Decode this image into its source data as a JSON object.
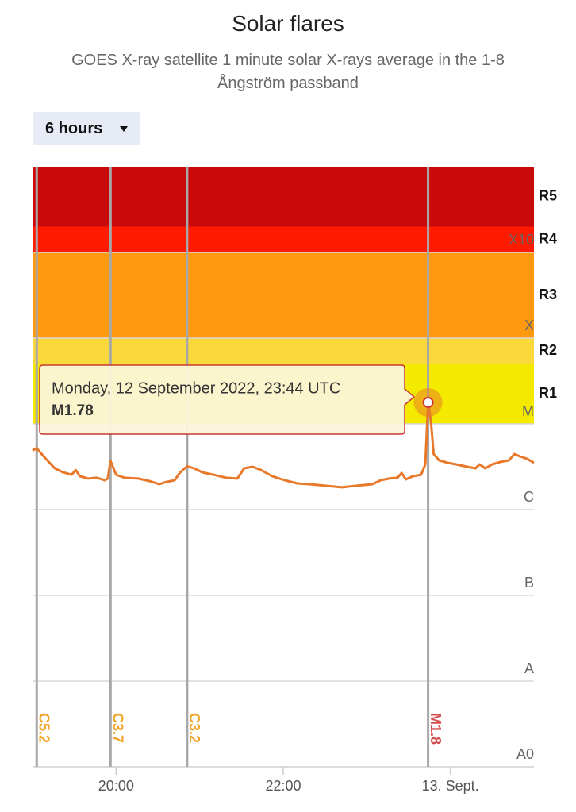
{
  "chart_data": {
    "type": "line",
    "title": "Solar flares",
    "subtitle": "GOES X-ray satellite 1 minute solar X-rays average in the 1-8 Ångström passband",
    "range_selector": "6 hours",
    "log_scale": true,
    "grid": true,
    "color": "#e8782a",
    "ylim": [
      1e-09,
      0.01
    ],
    "yticks": [
      {
        "value": 1e-09,
        "label": "A0"
      },
      {
        "value": 1e-08,
        "label": "A"
      },
      {
        "value": 1e-07,
        "label": "B"
      },
      {
        "value": 1e-06,
        "label": "C"
      },
      {
        "value": 1e-05,
        "label": "M"
      },
      {
        "value": 0.0001,
        "label": "X"
      },
      {
        "value": 0.001,
        "label": "X10"
      }
    ],
    "xlim": [
      "2022-09-12T19:00Z",
      "2022-09-13T01:00Z"
    ],
    "xticks": [
      {
        "value": "2022-09-12T20:00Z",
        "label": "20:00"
      },
      {
        "value": "2022-09-12T22:00Z",
        "label": "22:00"
      },
      {
        "value": "2022-09-13T00:00Z",
        "label": "13. Sept."
      }
    ],
    "bands": [
      {
        "label": "R1",
        "from": 1e-05,
        "to": 5e-05,
        "color": "#f4ea00"
      },
      {
        "label": "R2",
        "from": 5e-05,
        "to": 0.0001,
        "color": "#fcd93a"
      },
      {
        "label": "R3",
        "from": 0.0001,
        "to": 0.001,
        "color": "#ff9a10"
      },
      {
        "label": "R4",
        "from": 0.001,
        "to": 0.002,
        "color": "#ff1a00"
      },
      {
        "label": "R5",
        "from": 0.002,
        "to": 0.01,
        "color": "#c80a0a"
      }
    ],
    "flares": [
      {
        "x": "2022-09-12T19:03Z",
        "label": "C5.2",
        "color": "#f0a428"
      },
      {
        "x": "2022-09-12T19:56Z",
        "label": "C3.7",
        "color": "#f0a428"
      },
      {
        "x": "2022-09-12T20:51Z",
        "label": "C3.2",
        "color": "#f0a428"
      },
      {
        "x": "2022-09-12T23:44Z",
        "label": "M1.8",
        "color": "#d45050"
      }
    ],
    "tooltip": {
      "text": "Monday, 12 September 2022, 23:44 UTC",
      "label": "M1.78",
      "x": "2022-09-12T23:44Z",
      "value": 1.78e-05
    },
    "x": [
      "2022-09-12T19:00Z",
      "2022-09-12T19:03Z",
      "2022-09-12T19:08Z",
      "2022-09-12T19:16Z",
      "2022-09-12T19:22Z",
      "2022-09-12T19:28Z",
      "2022-09-12T19:31Z",
      "2022-09-12T19:34Z",
      "2022-09-12T19:40Z",
      "2022-09-12T19:46Z",
      "2022-09-12T19:52Z",
      "2022-09-12T19:54Z",
      "2022-09-12T19:56Z",
      "2022-09-12T20:00Z",
      "2022-09-12T20:06Z",
      "2022-09-12T20:16Z",
      "2022-09-12T20:24Z",
      "2022-09-12T20:31Z",
      "2022-09-12T20:36Z",
      "2022-09-12T20:42Z",
      "2022-09-12T20:46Z",
      "2022-09-12T20:51Z",
      "2022-09-12T20:56Z",
      "2022-09-12T21:02Z",
      "2022-09-12T21:10Z",
      "2022-09-12T21:19Z",
      "2022-09-12T21:27Z",
      "2022-09-12T21:32Z",
      "2022-09-12T21:38Z",
      "2022-09-12T21:44Z",
      "2022-09-12T21:52Z",
      "2022-09-12T22:01Z",
      "2022-09-12T22:10Z",
      "2022-09-12T22:19Z",
      "2022-09-12T22:30Z",
      "2022-09-12T22:42Z",
      "2022-09-12T22:53Z",
      "2022-09-12T23:04Z",
      "2022-09-12T23:10Z",
      "2022-09-12T23:16Z",
      "2022-09-12T23:22Z",
      "2022-09-12T23:25Z",
      "2022-09-12T23:28Z",
      "2022-09-12T23:33Z",
      "2022-09-12T23:39Z",
      "2022-09-12T23:42Z",
      "2022-09-12T23:44Z",
      "2022-09-12T23:46Z",
      "2022-09-12T23:48Z",
      "2022-09-12T23:52Z",
      "2022-09-12T23:58Z",
      "2022-09-13T00:04Z",
      "2022-09-13T00:12Z",
      "2022-09-13T00:18Z",
      "2022-09-13T00:21Z",
      "2022-09-13T00:25Z",
      "2022-09-13T00:30Z",
      "2022-09-13T00:36Z",
      "2022-09-13T00:42Z",
      "2022-09-13T00:46Z",
      "2022-09-13T00:50Z",
      "2022-09-13T00:55Z",
      "2022-09-13T01:00Z"
    ],
    "values": [
      4.9e-06,
      5.2e-06,
      4.17e-06,
      3.03e-06,
      2.72e-06,
      2.55e-06,
      2.9e-06,
      2.45e-06,
      2.3e-06,
      2.35e-06,
      2.2e-06,
      2.3e-06,
      3.7e-06,
      2.55e-06,
      2.35e-06,
      2.3e-06,
      2.15e-06,
      1.98e-06,
      2.1e-06,
      2.2e-06,
      2.72e-06,
      3.2e-06,
      3.03e-06,
      2.72e-06,
      2.55e-06,
      2.35e-06,
      2.3e-06,
      3.03e-06,
      3.16e-06,
      2.9e-06,
      2.45e-06,
      2.2e-06,
      2.02e-06,
      1.98e-06,
      1.9e-06,
      1.82e-06,
      1.9e-06,
      1.98e-06,
      2.2e-06,
      2.3e-06,
      2.35e-06,
      2.67e-06,
      2.25e-06,
      2.45e-06,
      2.55e-06,
      3.37e-06,
      1.78e-05,
      1.09e-05,
      4.45e-06,
      3.75e-06,
      3.52e-06,
      3.37e-06,
      3.16e-06,
      3.03e-06,
      3.37e-06,
      3.03e-06,
      3.37e-06,
      3.6e-06,
      3.75e-06,
      4.45e-06,
      4.17e-06,
      3.92e-06,
      3.52e-06
    ]
  }
}
